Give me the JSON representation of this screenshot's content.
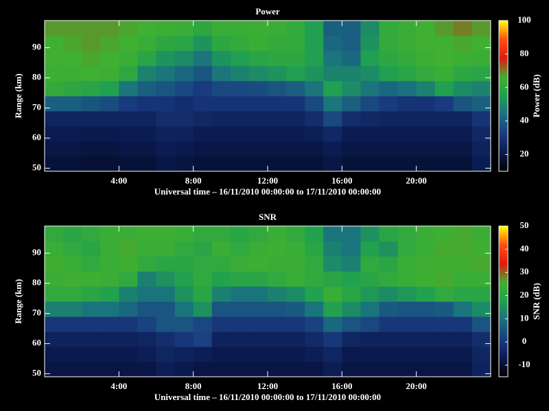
{
  "chart_data": [
    {
      "type": "heatmap",
      "title": "Power",
      "xlabel": "Universal time – 16/11/2010 00:00:00 to 17/11/2010 00:00:00",
      "ylabel": "Range (km)",
      "colorbar_label": "Power (dB)",
      "xlim": [
        0,
        24
      ],
      "xticks": [
        {
          "value": 4,
          "label": "4:00"
        },
        {
          "value": 8,
          "label": "8:00"
        },
        {
          "value": 12,
          "label": "12:00"
        },
        {
          "value": 16,
          "label": "16:00"
        },
        {
          "value": 20,
          "label": "20:00"
        }
      ],
      "ylim": [
        49,
        99
      ],
      "yticks": [
        50,
        60,
        70,
        80,
        90
      ],
      "clim": [
        10,
        100
      ],
      "cticks": [
        20,
        40,
        60,
        80,
        100
      ],
      "colormap": [
        "#000000",
        "#0a1a50",
        "#1a3c80",
        "#1a7080",
        "#20a050",
        "#40b030",
        "#e01a10",
        "#ff5010",
        "#ffff00"
      ],
      "xbins": [
        0,
        1,
        2,
        3,
        4,
        5,
        6,
        7,
        8,
        9,
        10,
        11,
        12,
        13,
        14,
        15,
        16,
        17,
        18,
        19,
        20,
        21,
        22,
        23,
        24
      ],
      "ybins": [
        49,
        54,
        59,
        64,
        69,
        74,
        79,
        84,
        89,
        94,
        99
      ],
      "z": [
        [
          18,
          18,
          17,
          17,
          18,
          18,
          20,
          19,
          18,
          18,
          18,
          18,
          18,
          18,
          18,
          20,
          18,
          18,
          18,
          18,
          18,
          18,
          18,
          22
        ],
        [
          20,
          20,
          19,
          19,
          20,
          20,
          22,
          21,
          20,
          20,
          20,
          20,
          20,
          20,
          20,
          22,
          20,
          20,
          20,
          20,
          20,
          20,
          20,
          24
        ],
        [
          22,
          22,
          21,
          21,
          22,
          22,
          24,
          24,
          22,
          22,
          22,
          22,
          22,
          22,
          23,
          26,
          22,
          22,
          22,
          22,
          22,
          22,
          22,
          26
        ],
        [
          25,
          25,
          25,
          25,
          25,
          25,
          28,
          28,
          26,
          25,
          25,
          25,
          25,
          25,
          28,
          35,
          28,
          26,
          25,
          25,
          25,
          25,
          25,
          30
        ],
        [
          40,
          40,
          38,
          36,
          32,
          30,
          30,
          28,
          30,
          30,
          30,
          30,
          30,
          30,
          35,
          45,
          40,
          35,
          32,
          30,
          30,
          32,
          38,
          40
        ],
        [
          62,
          60,
          58,
          55,
          45,
          40,
          38,
          35,
          32,
          35,
          35,
          36,
          38,
          40,
          45,
          55,
          50,
          45,
          42,
          44,
          48,
          55,
          50,
          48
        ],
        [
          65,
          65,
          66,
          65,
          60,
          48,
          45,
          42,
          38,
          45,
          48,
          50,
          52,
          55,
          52,
          48,
          48,
          50,
          55,
          58,
          62,
          64,
          60,
          58
        ],
        [
          66,
          66,
          67,
          66,
          64,
          58,
          52,
          50,
          45,
          52,
          55,
          58,
          60,
          60,
          55,
          45,
          42,
          55,
          60,
          62,
          65,
          66,
          65,
          64
        ],
        [
          66,
          67,
          68,
          67,
          66,
          64,
          60,
          58,
          52,
          60,
          62,
          64,
          62,
          62,
          55,
          42,
          40,
          52,
          62,
          64,
          66,
          66,
          67,
          66
        ],
        [
          68,
          68,
          68,
          68,
          67,
          66,
          65,
          64,
          60,
          64,
          64,
          65,
          64,
          62,
          55,
          40,
          40,
          50,
          62,
          64,
          66,
          68,
          70,
          68
        ]
      ]
    },
    {
      "type": "heatmap",
      "title": "SNR",
      "xlabel": "Universal time – 16/11/2010 00:00:00 to 17/11/2010 00:00:00",
      "ylabel": "Range (km)",
      "colorbar_label": "SNR (dB)",
      "xlim": [
        0,
        24
      ],
      "xticks": [
        {
          "value": 4,
          "label": "4:00"
        },
        {
          "value": 8,
          "label": "8:00"
        },
        {
          "value": 12,
          "label": "12:00"
        },
        {
          "value": 16,
          "label": "16:00"
        },
        {
          "value": 20,
          "label": "20:00"
        }
      ],
      "ylim": [
        49,
        99
      ],
      "yticks": [
        50,
        60,
        70,
        80,
        90
      ],
      "clim": [
        -15,
        50
      ],
      "cticks": [
        -10,
        0,
        10,
        20,
        30,
        40,
        50
      ],
      "colormap": [
        "#000000",
        "#0a1a50",
        "#1a3c80",
        "#1a7080",
        "#20a050",
        "#40b030",
        "#e01a10",
        "#ff5010",
        "#ffff00"
      ],
      "xbins": [
        0,
        1,
        2,
        3,
        4,
        5,
        6,
        7,
        8,
        9,
        10,
        11,
        12,
        13,
        14,
        15,
        16,
        17,
        18,
        19,
        20,
        21,
        22,
        23,
        24
      ],
      "ybins": [
        49,
        54,
        59,
        64,
        69,
        74,
        79,
        84,
        89,
        94,
        99
      ],
      "z": [
        [
          -8,
          -8,
          -8,
          -8,
          -8,
          -8,
          -6,
          -7,
          -8,
          -8,
          -8,
          -8,
          -8,
          -8,
          -8,
          -6,
          -8,
          -8,
          -8,
          -8,
          -8,
          -8,
          -8,
          -5
        ],
        [
          -7,
          -7,
          -7,
          -7,
          -7,
          -6,
          -4,
          -5,
          -6,
          -7,
          -7,
          -7,
          -7,
          -7,
          -6,
          -4,
          -7,
          -7,
          -7,
          -7,
          -7,
          -7,
          -7,
          -4
        ],
        [
          -5,
          -5,
          -5,
          -5,
          -5,
          -4,
          -2,
          0,
          2,
          -5,
          -5,
          -5,
          -5,
          -5,
          -3,
          0,
          -4,
          -5,
          -5,
          -5,
          -5,
          -5,
          -5,
          -2
        ],
        [
          0,
          0,
          0,
          0,
          0,
          2,
          5,
          5,
          3,
          0,
          0,
          0,
          0,
          0,
          2,
          8,
          5,
          3,
          0,
          0,
          0,
          0,
          0,
          5
        ],
        [
          12,
          12,
          10,
          10,
          8,
          5,
          5,
          10,
          15,
          5,
          5,
          5,
          5,
          6,
          10,
          18,
          14,
          10,
          6,
          5,
          5,
          6,
          10,
          14
        ],
        [
          22,
          22,
          20,
          18,
          12,
          10,
          10,
          15,
          20,
          12,
          10,
          10,
          12,
          14,
          18,
          24,
          20,
          16,
          14,
          16,
          18,
          22,
          20,
          20
        ],
        [
          24,
          25,
          25,
          24,
          22,
          12,
          15,
          18,
          22,
          18,
          20,
          20,
          22,
          24,
          22,
          20,
          18,
          20,
          22,
          24,
          25,
          26,
          24,
          24
        ],
        [
          25,
          24,
          22,
          24,
          25,
          22,
          20,
          20,
          22,
          22,
          24,
          25,
          24,
          24,
          22,
          14,
          12,
          22,
          20,
          24,
          25,
          25,
          25,
          26
        ],
        [
          24,
          22,
          20,
          24,
          26,
          24,
          24,
          22,
          20,
          24,
          22,
          24,
          25,
          24,
          20,
          12,
          10,
          18,
          15,
          22,
          24,
          26,
          26,
          25
        ],
        [
          22,
          20,
          22,
          24,
          24,
          25,
          25,
          24,
          22,
          22,
          20,
          22,
          24,
          22,
          18,
          10,
          10,
          15,
          20,
          22,
          24,
          25,
          26,
          24
        ]
      ]
    }
  ]
}
